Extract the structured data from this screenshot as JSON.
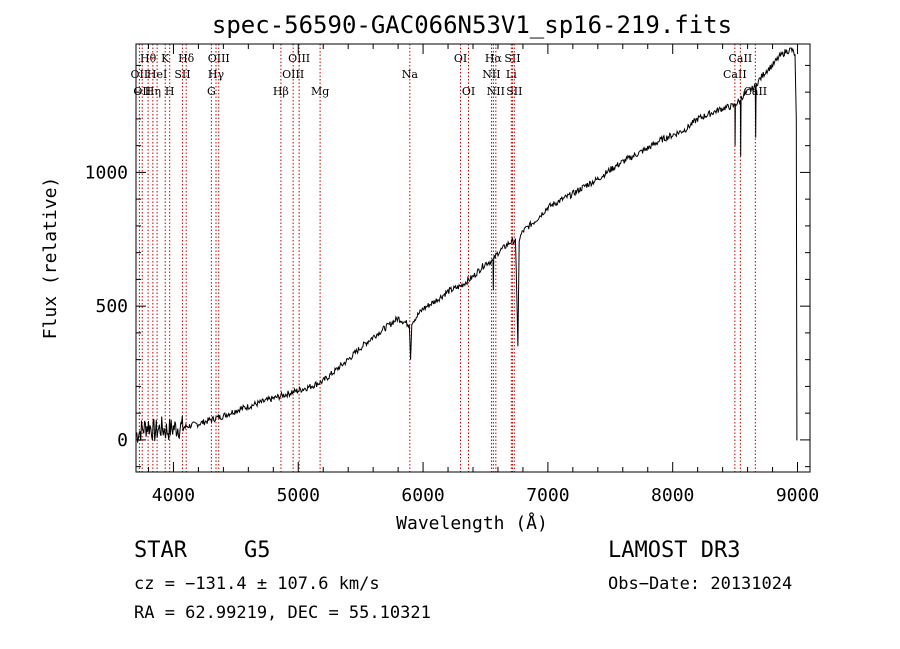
{
  "chart_data": {
    "type": "line",
    "title": "spec-56590-GAC066N53V1_sp16-219.fits",
    "xlabel": "Wavelength (Å)",
    "ylabel": "Flux (relative)",
    "xlim": [
      3700,
      9100
    ],
    "ylim": [
      -120,
      1480
    ],
    "xticks": [
      4000,
      5000,
      6000,
      7000,
      8000,
      9000
    ],
    "yticks": [
      0,
      500,
      1000
    ],
    "xtick_labels": [
      "4000",
      "5000",
      "6000",
      "7000",
      "8000",
      "9000"
    ],
    "ytick_labels": [
      "0",
      "500",
      "1000"
    ],
    "series": [
      {
        "name": "flux",
        "x": [
          3700,
          3750,
          3800,
          3850,
          3900,
          3950,
          4000,
          4100,
          4200,
          4300,
          4400,
          4500,
          4600,
          4700,
          4800,
          4900,
          5000,
          5100,
          5200,
          5300,
          5400,
          5500,
          5600,
          5700,
          5800,
          5890,
          5900,
          5910,
          6000,
          6100,
          6200,
          6300,
          6400,
          6500,
          6560,
          6563,
          6566,
          6600,
          6650,
          6700,
          6740,
          6760,
          6770,
          6800,
          6900,
          7000,
          7100,
          7200,
          7300,
          7400,
          7500,
          7600,
          7700,
          7800,
          7900,
          8000,
          8100,
          8200,
          8300,
          8400,
          8498,
          8500,
          8502,
          8542,
          8545,
          8548,
          8600,
          8662,
          8665,
          8668,
          8700,
          8750,
          8800,
          8850,
          8900,
          8950,
          8980,
          8990,
          8995,
          9000
        ],
        "y": [
          20,
          40,
          55,
          30,
          45,
          35,
          45,
          50,
          60,
          75,
          90,
          110,
          125,
          140,
          155,
          170,
          185,
          200,
          220,
          260,
          300,
          345,
          385,
          420,
          455,
          430,
          300,
          440,
          490,
          520,
          555,
          575,
          610,
          660,
          670,
          560,
          675,
          700,
          720,
          740,
          745,
          350,
          750,
          780,
          820,
          870,
          895,
          920,
          950,
          975,
          1010,
          1040,
          1065,
          1090,
          1120,
          1140,
          1160,
          1200,
          1220,
          1240,
          1250,
          1100,
          1255,
          1270,
          1060,
          1280,
          1300,
          1320,
          1130,
          1330,
          1350,
          1380,
          1400,
          1430,
          1450,
          1460,
          1440,
          1200,
          0,
          0
        ]
      }
    ],
    "lines": [
      {
        "wavelength": 3727,
        "label": "OII",
        "row": 2
      },
      {
        "wavelength": 3750,
        "label": "OII",
        "row": 3
      },
      {
        "wavelength": 3797,
        "label": "Hθ",
        "row": 1
      },
      {
        "wavelength": 3835,
        "label": "Hη",
        "row": 3
      },
      {
        "wavelength": 3869,
        "label": "HeI",
        "row": 2
      },
      {
        "wavelength": 3934,
        "label": "K",
        "row": 1
      },
      {
        "wavelength": 3970,
        "label": "H",
        "row": 3
      },
      {
        "wavelength": 4072,
        "label": "SII",
        "row": 2
      },
      {
        "wavelength": 4102,
        "label": "Hδ",
        "row": 1
      },
      {
        "wavelength": 4304,
        "label": "G",
        "row": 3
      },
      {
        "wavelength": 4341,
        "label": "Hγ",
        "row": 2
      },
      {
        "wavelength": 4363,
        "label": "OIII",
        "row": 1
      },
      {
        "wavelength": 4861,
        "label": "Hβ",
        "row": 3
      },
      {
        "wavelength": 4959,
        "label": "OIII",
        "row": 2
      },
      {
        "wavelength": 5007,
        "label": "OIII",
        "row": 1
      },
      {
        "wavelength": 5175,
        "label": "Mg",
        "row": 3
      },
      {
        "wavelength": 5894,
        "label": "Na",
        "row": 2
      },
      {
        "wavelength": 6300,
        "label": "OI",
        "row": 1
      },
      {
        "wavelength": 6364,
        "label": "OI",
        "row": 3
      },
      {
        "wavelength": 6548,
        "label": "NII",
        "row": 2
      },
      {
        "wavelength": 6563,
        "label": "Hα",
        "row": 1
      },
      {
        "wavelength": 6583,
        "label": "NII",
        "row": 3
      },
      {
        "wavelength": 6707,
        "label": "Li",
        "row": 2
      },
      {
        "wavelength": 6716,
        "label": "SII",
        "row": 1
      },
      {
        "wavelength": 6731,
        "label": "SII",
        "row": 3
      },
      {
        "wavelength": 8498,
        "label": "CaII",
        "row": 2
      },
      {
        "wavelength": 8542,
        "label": "CaII",
        "row": 1
      },
      {
        "wavelength": 8662,
        "label": "CaII",
        "row": 3
      }
    ]
  },
  "info": {
    "class": "STAR",
    "subclass": "G5",
    "survey": "LAMOST DR3",
    "cz": "cz = −131.4 ± 107.6 km/s",
    "obs_date": "Obs−Date: 20131024",
    "radec": "RA =  62.99219, DEC =  55.10321"
  }
}
